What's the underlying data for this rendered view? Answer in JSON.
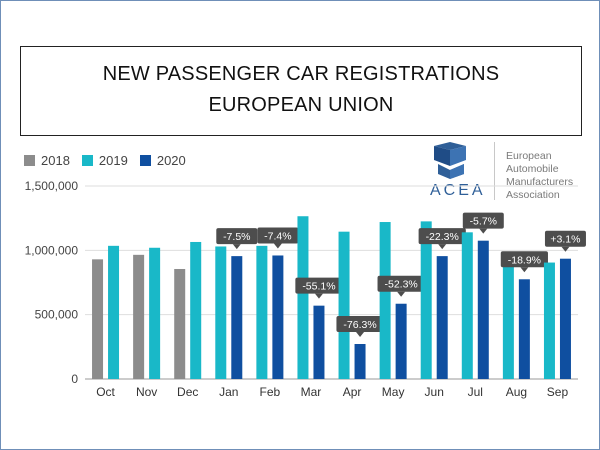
{
  "title": {
    "line1": "NEW PASSENGER CAR REGISTRATIONS",
    "line2": "EUROPEAN UNION"
  },
  "logo": {
    "acronym": "ACEA",
    "name_lines": [
      "European",
      "Automobile",
      "Manufacturers",
      "Association"
    ],
    "color": "#2f5f98"
  },
  "colors": {
    "2018": "#8c8c8c",
    "2019": "#19b8c8",
    "2020": "#0f4fa0",
    "label_bg": "#4d4d4d"
  },
  "chart_data": {
    "type": "bar",
    "title": "NEW PASSENGER CAR REGISTRATIONS EUROPEAN UNION",
    "xlabel": "",
    "ylabel": "",
    "ylim": [
      0,
      1500000
    ],
    "yticks": [
      0,
      500000,
      1000000,
      1500000
    ],
    "ytick_labels": [
      "0",
      "500,000",
      "1,000,000",
      "1,500,000"
    ],
    "grid": true,
    "legend": "top-left",
    "categories": [
      "Oct",
      "Nov",
      "Dec",
      "Jan",
      "Feb",
      "Mar",
      "Apr",
      "May",
      "Jun",
      "Jul",
      "Aug",
      "Sep"
    ],
    "series": [
      {
        "name": "2018",
        "values": [
          930000,
          965000,
          855000,
          null,
          null,
          null,
          null,
          null,
          null,
          null,
          null,
          null
        ]
      },
      {
        "name": "2019",
        "values": [
          1035000,
          1020000,
          1065000,
          1030000,
          1035000,
          1265000,
          1145000,
          1220000,
          1225000,
          1140000,
          950000,
          905000
        ]
      },
      {
        "name": "2020",
        "values": [
          null,
          null,
          null,
          955000,
          960000,
          570000,
          272000,
          585000,
          955000,
          1075000,
          775000,
          935000
        ]
      }
    ],
    "annotations": [
      "",
      "",
      "",
      "-7.5%",
      "-7.4%",
      "-55.1%",
      "-76.3%",
      "-52.3%",
      "-22.3%",
      "-5.7%",
      "-18.9%",
      "+3.1%"
    ]
  }
}
